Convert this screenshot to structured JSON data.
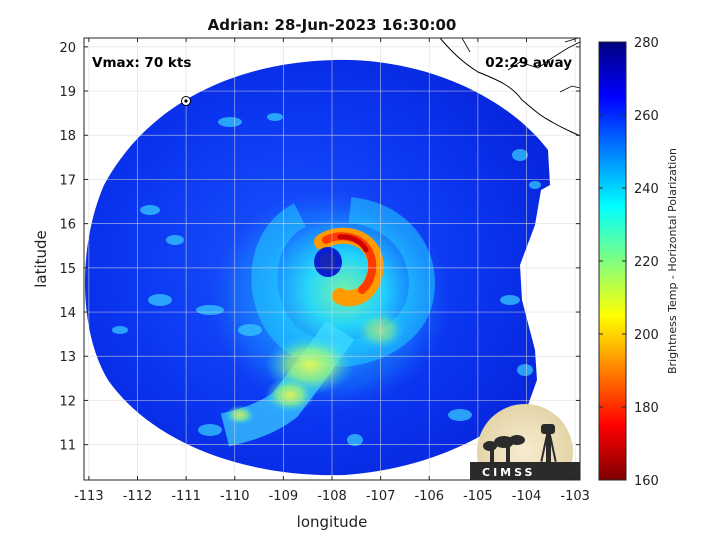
{
  "chart_data": {
    "type": "heatmap",
    "title": "Adrian: 28-Jun-2023 16:30:00",
    "xlabel": "longitude",
    "ylabel": "latitude",
    "xlim": [
      -113.1,
      -102.9
    ],
    "ylim": [
      10.2,
      20.2
    ],
    "xticks": [
      -113,
      -112,
      -111,
      -110,
      -109,
      -108,
      -107,
      -106,
      -105,
      -104,
      -103
    ],
    "yticks": [
      11,
      12,
      13,
      14,
      15,
      16,
      17,
      18,
      19,
      20
    ],
    "grid": true,
    "storm": {
      "name": "Adrian",
      "eye_center": {
        "lon": -107.8,
        "lat": 15.4
      },
      "vmax_label": "Vmax: 70 kts",
      "time_offset_label": "02:29 away"
    },
    "colorbar": {
      "label": "Brightness Temp - Horizontal Polarization",
      "ticks": [
        160,
        180,
        200,
        220,
        240,
        260,
        280
      ],
      "range": [
        160,
        280
      ],
      "colormap": "jet"
    },
    "features": [
      {
        "label": "eyewall",
        "lon": -107.7,
        "lat": 15.2,
        "value": 185
      },
      {
        "label": "background",
        "value": 262
      },
      {
        "label": "southern rainband",
        "lon": -108.7,
        "lat": 12.6,
        "value": 205
      }
    ],
    "logo_text": "CIMSS"
  },
  "colors": {
    "jet": [
      "#7f0000",
      "#ff0000",
      "#ff8000",
      "#ffff00",
      "#80ff80",
      "#00ffff",
      "#0080ff",
      "#0000ff",
      "#00007f"
    ],
    "grid": "#d9d9d9",
    "axes": "#262626",
    "coastline": "#000000"
  }
}
